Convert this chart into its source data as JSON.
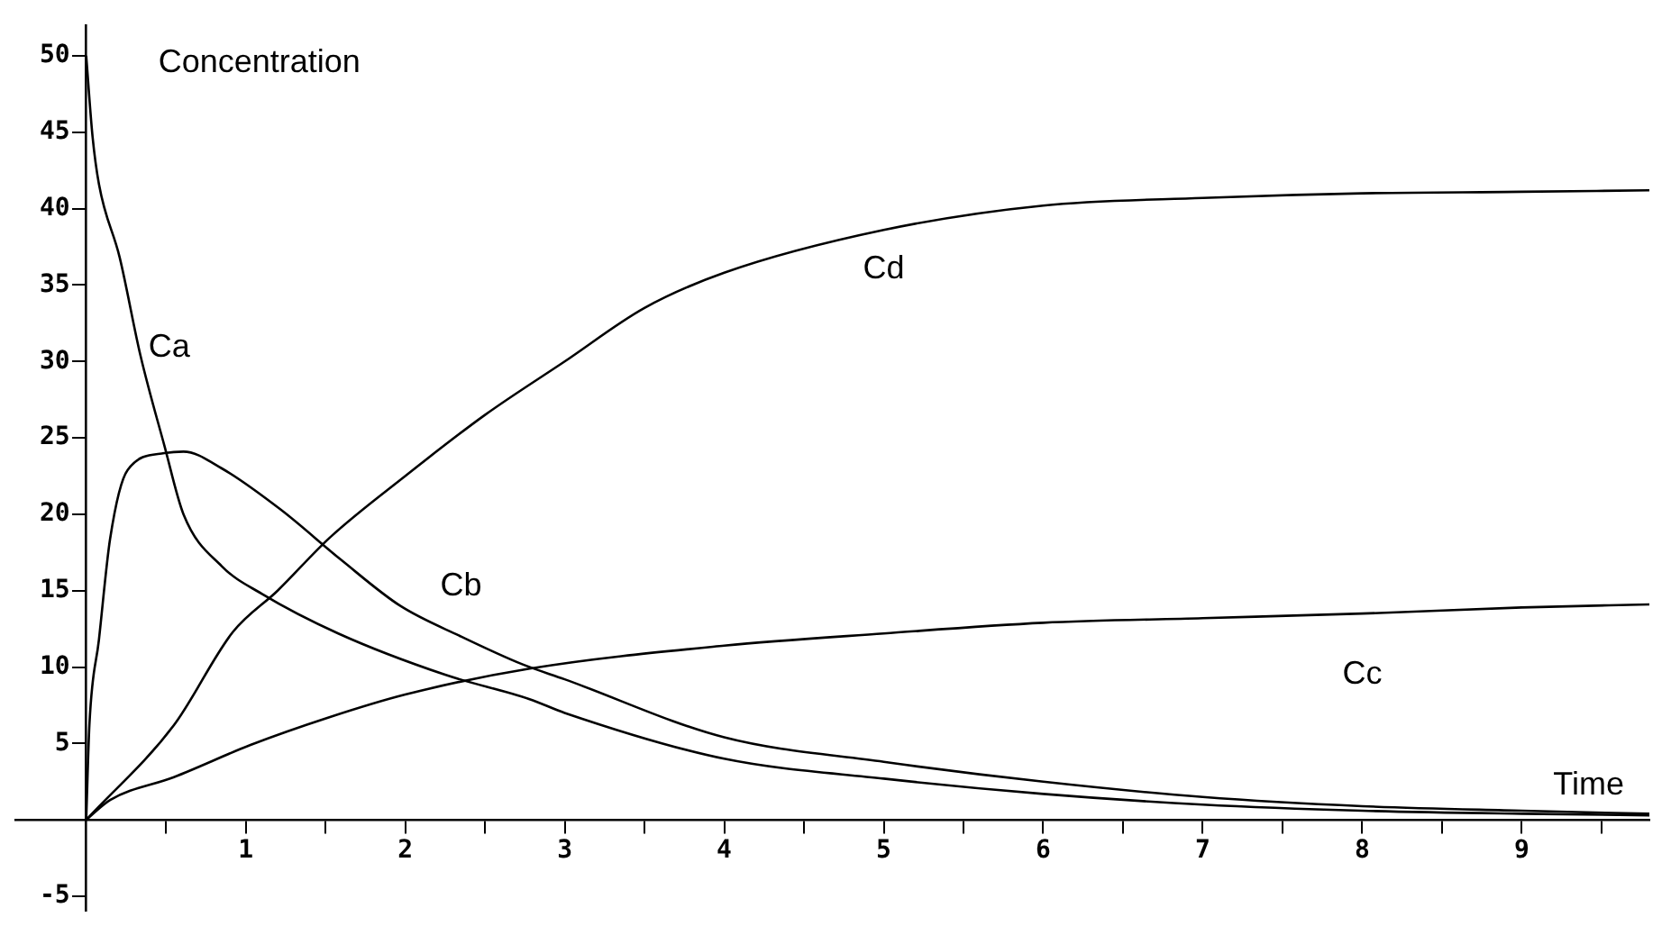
{
  "chart_data": {
    "type": "line",
    "xlabel": "Time",
    "ylabel": "Concentration",
    "xlim": [
      -0.45,
      9.8
    ],
    "ylim": [
      -6,
      52
    ],
    "xticks": [
      {
        "value": 0.5,
        "label": null
      },
      1,
      {
        "value": 1.5,
        "label": null
      },
      2,
      {
        "value": 2.5,
        "label": null
      },
      3,
      {
        "value": 3.5,
        "label": null
      },
      4,
      {
        "value": 4.5,
        "label": null
      },
      5,
      {
        "value": 5.5,
        "label": null
      },
      6,
      {
        "value": 6.5,
        "label": null
      },
      7,
      {
        "value": 7.5,
        "label": null
      },
      8,
      {
        "value": 8.5,
        "label": null
      },
      9,
      {
        "value": 9.5,
        "label": null
      }
    ],
    "yticks": [
      -5,
      5,
      10,
      15,
      20,
      25,
      30,
      35,
      40,
      45,
      50
    ],
    "grid": false,
    "legend": false,
    "marker": "none",
    "line_style": "solid",
    "series": [
      {
        "name": "Ca",
        "color": "#000000",
        "x": [
          0,
          0.04,
          0.08,
          0.21,
          0.34,
          0.49,
          0.61,
          0.85,
          1.1,
          1.58,
          2.25,
          2.78,
          3,
          4,
          5,
          6,
          7,
          8,
          9,
          9.8
        ],
        "values": [
          50,
          44.7,
          41.6,
          36.8,
          30.4,
          24.5,
          20,
          16.6,
          14.8,
          12.2,
          9.5,
          7.9,
          7,
          4,
          2.7,
          1.7,
          1,
          0.6,
          0.4,
          0.3
        ]
      },
      {
        "name": "Cb",
        "color": "#000000",
        "x": [
          0,
          0.02,
          0.08,
          0.15,
          0.26,
          0.49,
          0.61,
          0.85,
          1.22,
          1.6,
          1.97,
          2.35,
          2.73,
          3,
          4,
          5,
          6,
          7,
          8,
          9,
          9.8
        ],
        "values": [
          0,
          6.2,
          11.8,
          18.4,
          22.9,
          24,
          24.1,
          23,
          20.3,
          17,
          14,
          12,
          10.2,
          9.2,
          5.4,
          3.8,
          2.5,
          1.5,
          0.9,
          0.6,
          0.4
        ]
      },
      {
        "name": "Cc",
        "color": "#000000",
        "x": [
          0,
          0.15,
          0.55,
          1.03,
          1.52,
          2,
          2.78,
          4,
          5,
          6,
          7,
          8,
          9,
          9.8
        ],
        "values": [
          0,
          1.3,
          2.8,
          4.9,
          6.7,
          8.2,
          9.9,
          11.4,
          12.2,
          12.9,
          13.2,
          13.5,
          13.9,
          14.1
        ]
      },
      {
        "name": "Cd",
        "color": "#000000",
        "x": [
          0,
          0.55,
          0.92,
          1.2,
          1.53,
          2,
          2.5,
          3,
          3.5,
          4,
          5,
          6,
          7,
          8,
          9,
          9.8
        ],
        "values": [
          0,
          6.2,
          12.3,
          15,
          18.5,
          22.5,
          26.5,
          30,
          33.5,
          35.8,
          38.6,
          40.2,
          40.7,
          41,
          41.1,
          41.2
        ]
      }
    ]
  }
}
